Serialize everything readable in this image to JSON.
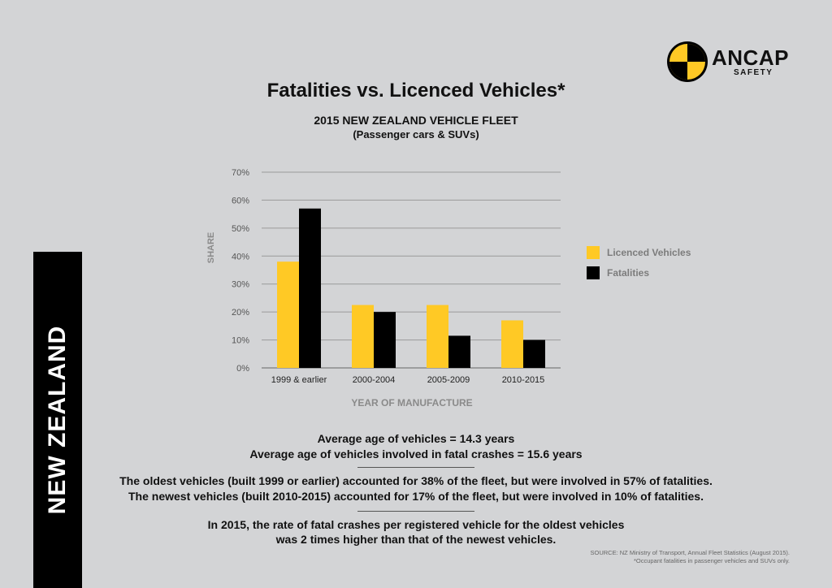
{
  "logo": {
    "name": "ANCAP",
    "tagline": "SAFETY"
  },
  "side_label": "NEW ZEALAND",
  "title": "Fatalities vs. Licenced Vehicles*",
  "subtitle": "2015 NEW ZEALAND VEHICLE FLEET",
  "subtitle2": "(Passenger cars & SUVs)",
  "colors": {
    "licenced": "#ffc925",
    "fatalities": "#000000",
    "background": "#d3d4d6",
    "grid": "#9a9a9a"
  },
  "chart_data": {
    "type": "bar",
    "title": "2015 NEW ZEALAND VEHICLE FLEET",
    "xlabel": "YEAR OF MANUFACTURE",
    "ylabel": "SHARE",
    "ylim": [
      0,
      70
    ],
    "yticks": [
      "0%",
      "10%",
      "20%",
      "30%",
      "40%",
      "50%",
      "60%",
      "70%"
    ],
    "categories": [
      "1999 & earlier",
      "2000-2004",
      "2005-2009",
      "2010-2015"
    ],
    "series": [
      {
        "name": "Licenced Vehicles",
        "values": [
          38,
          22.5,
          22.5,
          17
        ]
      },
      {
        "name": "Fatalities",
        "values": [
          57,
          20,
          11.5,
          10
        ]
      }
    ],
    "grid": true,
    "legend_position": "right"
  },
  "stats": {
    "line1": "Average age of vehicles = 14.3 years",
    "line2": "Average age of vehicles involved in fatal crashes = 15.6 years",
    "line3": "The oldest vehicles (built 1999 or earlier) accounted for 38% of the fleet, but were involved in 57% of fatalities.",
    "line4": "The newest vehicles (built 2010-2015) accounted for 17% of the fleet, but were involved in 10% of fatalities.",
    "line5": "In 2015, the rate of fatal crashes per registered vehicle for the oldest vehicles",
    "line6": "was 2 times higher than that of the newest vehicles."
  },
  "source": {
    "line1": "SOURCE:  NZ Ministry of Transport, Annual Fleet Statistics (August 2015).",
    "line2": "*Occupant fatalities in passenger vehicles and SUVs only."
  }
}
